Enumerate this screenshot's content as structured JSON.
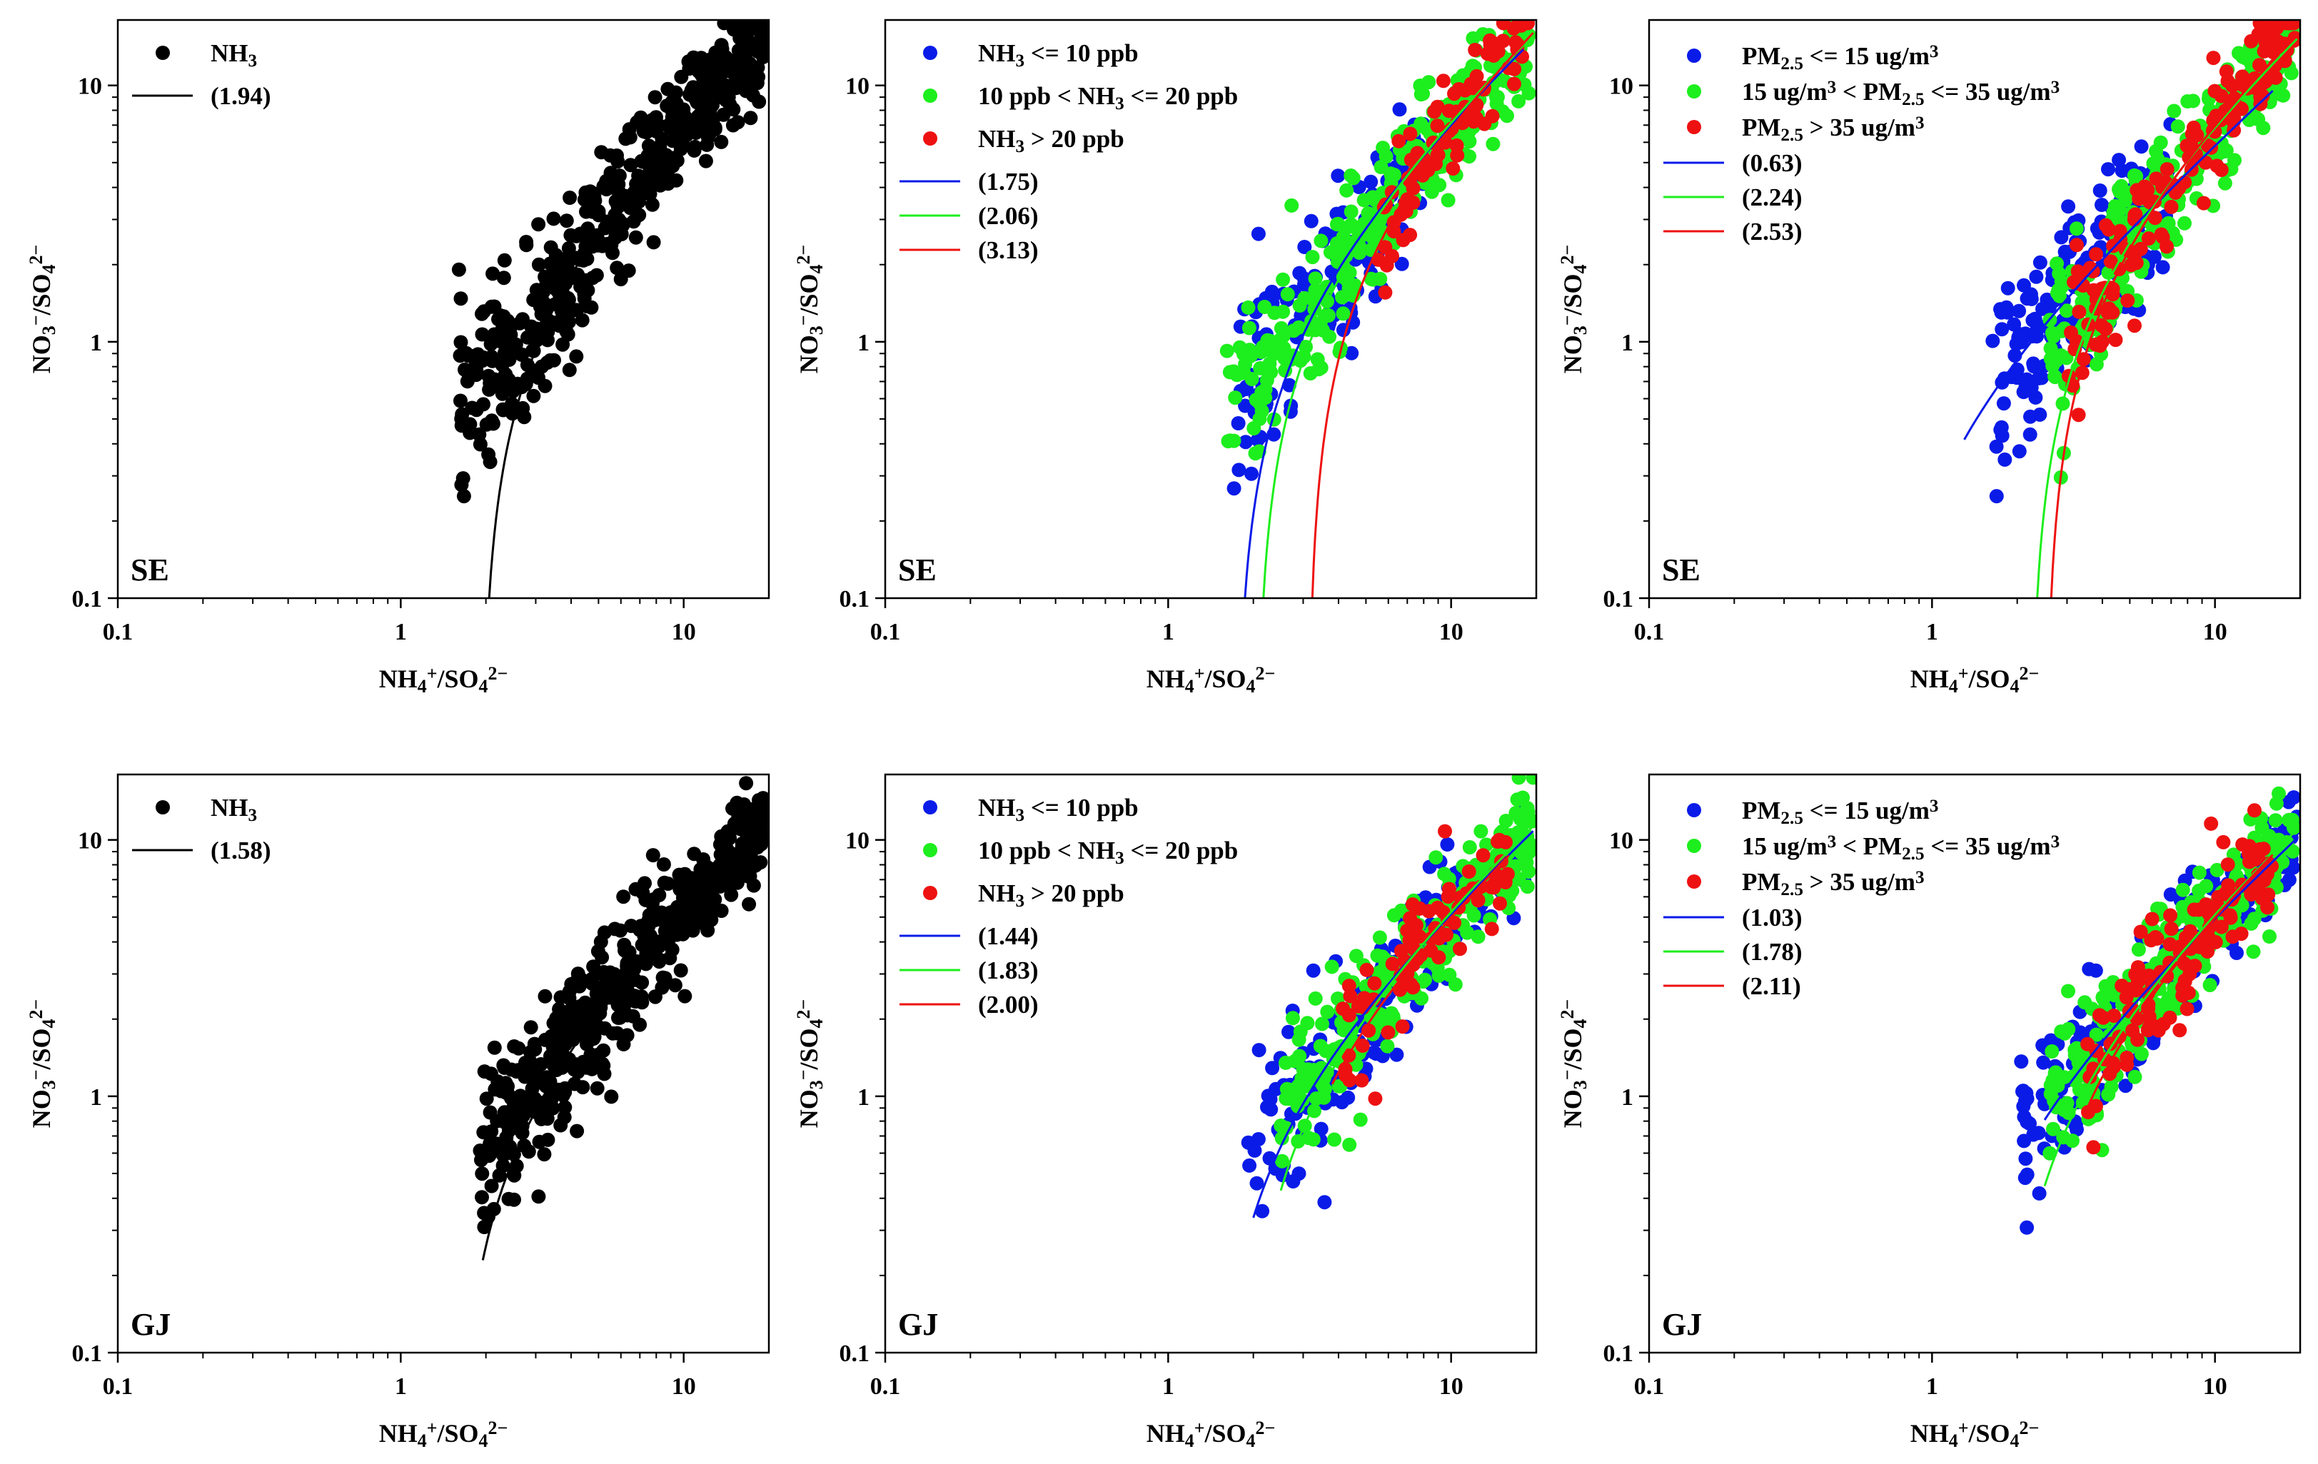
{
  "colors": {
    "blue": "#0a1be8",
    "green": "#1dee1d",
    "red": "#ee1111",
    "black": "#000000"
  },
  "axes": {
    "xticks": [
      "0.1",
      "1",
      "10"
    ],
    "yticks": [
      "0.1",
      "1",
      "10"
    ],
    "xlabel": "NH4+/SO42−",
    "ylabel": "NO3−/SO42−",
    "xlim": [
      0.1,
      20
    ],
    "ylim": [
      0.1,
      18
    ],
    "scale": "log"
  },
  "chart_data": [
    {
      "type": "scatter",
      "site": "SE",
      "group": "all",
      "legend": [
        {
          "label": "NH3",
          "color": "#000000",
          "kind": "point"
        },
        {
          "label": "(1.94)",
          "color": "#000000",
          "kind": "line"
        }
      ],
      "series": [
        {
          "color": "#000000",
          "n": 520,
          "xc": [
            1.6,
            19.5
          ],
          "cloud": [
            [
              1.6,
              0.85
            ],
            [
              2.5,
              0.7
            ],
            [
              3,
              1.3
            ],
            [
              5,
              3
            ],
            [
              10,
              7.5
            ],
            [
              19.5,
              17
            ]
          ],
          "fit": {
            "x0": 1.94,
            "k": 0.88,
            "xmax": 19.5
          }
        }
      ]
    },
    {
      "type": "scatter",
      "site": "SE",
      "group": "NH3",
      "legend": [
        {
          "label": "NH3 <= 10 ppb",
          "color": "#0a1be8",
          "kind": "point"
        },
        {
          "label": "10 ppb < NH3 <= 20 ppb",
          "color": "#1dee1d",
          "kind": "point"
        },
        {
          "label": "NH3 > 20 ppb",
          "color": "#ee1111",
          "kind": "point"
        },
        {
          "label": "(1.75)",
          "color": "#0a1be8",
          "kind": "line"
        },
        {
          "label": "(2.06)",
          "color": "#1dee1d",
          "kind": "line"
        },
        {
          "label": "(3.13)",
          "color": "#ee1111",
          "kind": "line"
        }
      ],
      "series": [
        {
          "color": "#0a1be8",
          "n": 180,
          "xr": [
            1.7,
            8
          ],
          "fit": {
            "x0": 1.75,
            "k": 0.85,
            "xmax": 18
          }
        },
        {
          "color": "#1dee1d",
          "n": 330,
          "xr": [
            1.6,
            19
          ],
          "fit": {
            "x0": 2.06,
            "k": 0.9,
            "xmax": 19.5
          }
        },
        {
          "color": "#ee1111",
          "n": 90,
          "xr": [
            5.5,
            19.5
          ],
          "fit": {
            "x0": 3.13,
            "k": 0.98,
            "xmax": 19.5
          }
        }
      ]
    },
    {
      "type": "scatter",
      "site": "SE",
      "group": "PM2.5",
      "legend": [
        {
          "label": "PM2.5 <= 15 ug/m3",
          "color": "#0a1be8",
          "kind": "point"
        },
        {
          "label": "15 ug/m3 < PM2.5 <= 35 ug/m3",
          "color": "#1dee1d",
          "kind": "point"
        },
        {
          "label": "PM2.5 > 35 ug/m3",
          "color": "#ee1111",
          "kind": "point"
        },
        {
          "label": "(0.63)",
          "color": "#0a1be8",
          "kind": "line"
        },
        {
          "label": "(2.24)",
          "color": "#1dee1d",
          "kind": "line"
        },
        {
          "label": "(2.53)",
          "color": "#ee1111",
          "kind": "line"
        }
      ],
      "series": [
        {
          "color": "#0a1be8",
          "n": 200,
          "xr": [
            1.6,
            7
          ],
          "fit": {
            "x0": 0.63,
            "k": 0.62,
            "xmin": 1.3,
            "xmax": 16
          }
        },
        {
          "color": "#1dee1d",
          "n": 300,
          "xr": [
            2.6,
            19
          ],
          "fit": {
            "x0": 2.24,
            "k": 0.88,
            "xmax": 19.5
          }
        },
        {
          "color": "#ee1111",
          "n": 160,
          "xr": [
            3,
            19.5
          ],
          "fit": {
            "x0": 2.53,
            "k": 0.93,
            "xmax": 19.5
          }
        }
      ]
    },
    {
      "type": "scatter",
      "site": "GJ",
      "group": "all",
      "legend": [
        {
          "label": "NH3",
          "color": "#000000",
          "kind": "point"
        },
        {
          "label": "(1.58)",
          "color": "#000000",
          "kind": "line"
        }
      ],
      "series": [
        {
          "color": "#000000",
          "n": 520,
          "xr": [
            1.9,
            19.5
          ],
          "fit": {
            "x0": 1.58,
            "k": 0.62,
            "xmin": 1.95,
            "xmax": 19.5
          }
        }
      ]
    },
    {
      "type": "scatter",
      "site": "GJ",
      "group": "NH3",
      "legend": [
        {
          "label": "NH3 <= 10 ppb",
          "color": "#0a1be8",
          "kind": "point"
        },
        {
          "label": "10 ppb < NH3 <= 20 ppb",
          "color": "#1dee1d",
          "kind": "point"
        },
        {
          "label": "NH3 > 20 ppb",
          "color": "#ee1111",
          "kind": "point"
        },
        {
          "label": "(1.44)",
          "color": "#0a1be8",
          "kind": "line"
        },
        {
          "label": "(1.83)",
          "color": "#1dee1d",
          "kind": "line"
        },
        {
          "label": "(2.00)",
          "color": "#ee1111",
          "kind": "line"
        }
      ],
      "series": [
        {
          "color": "#0a1be8",
          "n": 220,
          "xr": [
            1.9,
            19
          ],
          "fit": {
            "x0": 1.44,
            "k": 0.6,
            "xmin": 2,
            "xmax": 19.5
          }
        },
        {
          "color": "#1dee1d",
          "n": 280,
          "xr": [
            2.5,
            19.5
          ],
          "fit": {
            "x0": 1.83,
            "k": 0.64,
            "xmin": 2.5,
            "xmax": 19.5
          }
        },
        {
          "color": "#ee1111",
          "n": 80,
          "xr": [
            4,
            16
          ],
          "fit": {
            "x0": 2.0,
            "k": 0.62,
            "xmin": 3.8,
            "xmax": 16
          }
        }
      ]
    },
    {
      "type": "scatter",
      "site": "GJ",
      "group": "PM2.5",
      "legend": [
        {
          "label": "PM2.5 <= 15 ug/m3",
          "color": "#0a1be8",
          "kind": "point"
        },
        {
          "label": "15 ug/m3 < PM2.5 <= 35 ug/m3",
          "color": "#1dee1d",
          "kind": "point"
        },
        {
          "label": "PM2.5 > 35 ug/m3",
          "color": "#ee1111",
          "kind": "point"
        },
        {
          "label": "(1.03)",
          "color": "#0a1be8",
          "kind": "line"
        },
        {
          "label": "(1.78)",
          "color": "#1dee1d",
          "kind": "line"
        },
        {
          "label": "(2.11)",
          "color": "#ee1111",
          "kind": "line"
        }
      ],
      "series": [
        {
          "color": "#0a1be8",
          "n": 220,
          "xr": [
            2,
            19.5
          ],
          "fit": {
            "x0": 1.03,
            "k": 0.55,
            "xmin": 2.5,
            "xmax": 19.5
          }
        },
        {
          "color": "#1dee1d",
          "n": 300,
          "xr": [
            2.6,
            19
          ],
          "fit": {
            "x0": 1.78,
            "k": 0.62,
            "xmin": 2.5,
            "xmax": 19.5
          }
        },
        {
          "color": "#ee1111",
          "n": 130,
          "xr": [
            3.5,
            16
          ],
          "fit": {
            "x0": 2.11,
            "k": 0.63,
            "xmin": 3.5,
            "xmax": 16
          }
        }
      ]
    }
  ]
}
